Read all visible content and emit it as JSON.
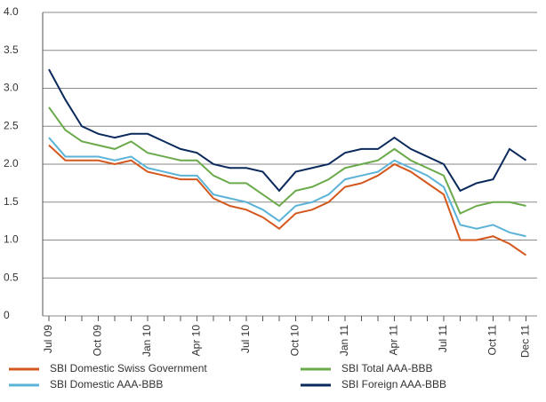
{
  "chart_data": {
    "type": "line",
    "categories": [
      "Jul 09",
      null,
      null,
      "Oct 09",
      null,
      null,
      "Jan 10",
      null,
      null,
      "Apr 10",
      null,
      null,
      "Jul 10",
      null,
      null,
      "Oct 10",
      null,
      null,
      "Jan 11",
      null,
      null,
      "Apr 11",
      null,
      null,
      "Jul 11",
      null,
      null,
      "Oct 11",
      null,
      "Dec 11"
    ],
    "series": [
      {
        "name": "SBI Domestic Swiss Government",
        "color": "#d4581e",
        "values": [
          2.25,
          2.05,
          2.05,
          2.05,
          2.0,
          2.05,
          1.9,
          1.85,
          1.8,
          1.8,
          1.55,
          1.45,
          1.4,
          1.3,
          1.15,
          1.35,
          1.4,
          1.5,
          1.7,
          1.75,
          1.85,
          2.0,
          1.9,
          1.75,
          1.6,
          1.0,
          1.0,
          1.05,
          0.95,
          0.8
        ]
      },
      {
        "name": "SBI Domestic AAA-BBB",
        "color": "#5bb3d8",
        "values": [
          2.35,
          2.1,
          2.1,
          2.1,
          2.05,
          2.1,
          1.95,
          1.9,
          1.85,
          1.85,
          1.6,
          1.55,
          1.5,
          1.4,
          1.25,
          1.45,
          1.5,
          1.6,
          1.8,
          1.85,
          1.9,
          2.05,
          1.95,
          1.85,
          1.7,
          1.2,
          1.15,
          1.2,
          1.1,
          1.05
        ]
      },
      {
        "name": "SBI Total AAA-BBB",
        "color": "#6aaa4a",
        "values": [
          2.75,
          2.45,
          2.3,
          2.25,
          2.2,
          2.3,
          2.15,
          2.1,
          2.05,
          2.05,
          1.85,
          1.75,
          1.75,
          1.6,
          1.45,
          1.65,
          1.7,
          1.8,
          1.95,
          2.0,
          2.05,
          2.2,
          2.05,
          1.95,
          1.85,
          1.35,
          1.45,
          1.5,
          1.5,
          1.45
        ]
      },
      {
        "name": "SBI Foreign AAA-BBB",
        "color": "#0b2a5c",
        "values": [
          3.25,
          2.85,
          2.5,
          2.4,
          2.35,
          2.4,
          2.4,
          2.3,
          2.2,
          2.15,
          2.0,
          1.95,
          1.95,
          1.9,
          1.65,
          1.9,
          1.95,
          2.0,
          2.15,
          2.2,
          2.2,
          2.35,
          2.2,
          2.1,
          2.0,
          1.65,
          1.75,
          1.8,
          2.2,
          2.05
        ]
      }
    ],
    "ylim": [
      0,
      4
    ],
    "yticks": [
      0,
      0.5,
      {
        "value": 1,
        "label": "1.0"
      },
      1.5,
      {
        "value": 2,
        "label": "2.0"
      },
      2.5,
      {
        "value": 3,
        "label": "3.0"
      },
      3.5,
      {
        "value": 4,
        "label": "4.0"
      }
    ],
    "grid": true
  }
}
